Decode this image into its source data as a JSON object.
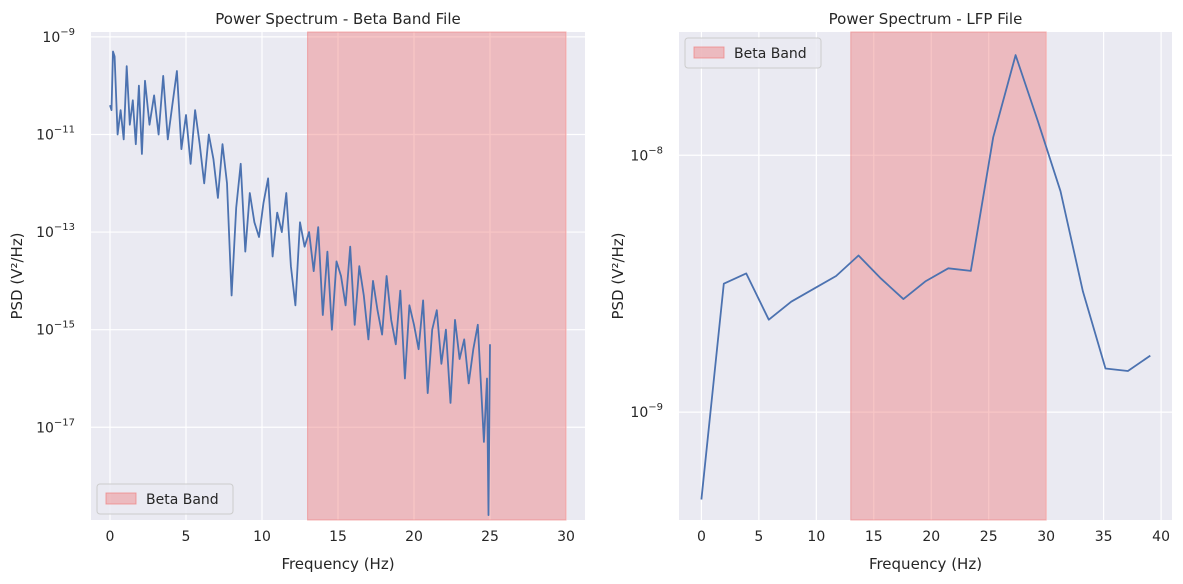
{
  "chart_data": [
    {
      "type": "line",
      "title": "Power Spectrum - Beta Band File",
      "xlabel": "Frequency (Hz)",
      "ylabel": "PSD (V²/Hz)",
      "xlim": [
        -1.25,
        31.25
      ],
      "ylim_log10": [
        -18.9,
        -8.9
      ],
      "yscale": "log",
      "xticks": [
        0,
        5,
        10,
        15,
        20,
        25,
        30
      ],
      "yticks_exp": [
        -17,
        -15,
        -13,
        -11,
        -9
      ],
      "grid": true,
      "legend_placement": "lower-left",
      "band": {
        "label": "Beta Band",
        "x0": 13,
        "x1": 30,
        "color": "#f08080"
      },
      "series_color": "#4c72b0",
      "x": [
        0.0,
        0.1,
        0.2,
        0.3,
        0.5,
        0.7,
        0.9,
        1.1,
        1.3,
        1.5,
        1.7,
        1.9,
        2.1,
        2.3,
        2.6,
        2.9,
        3.2,
        3.5,
        3.8,
        4.1,
        4.4,
        4.7,
        5.0,
        5.3,
        5.6,
        5.9,
        6.2,
        6.5,
        6.8,
        7.1,
        7.4,
        7.7,
        8.0,
        8.3,
        8.6,
        8.9,
        9.2,
        9.5,
        9.8,
        10.1,
        10.4,
        10.7,
        11.0,
        11.3,
        11.6,
        11.9,
        12.2,
        12.5,
        12.8,
        13.1,
        13.4,
        13.7,
        14.0,
        14.3,
        14.6,
        14.9,
        15.2,
        15.5,
        15.8,
        16.1,
        16.4,
        16.7,
        17.0,
        17.3,
        17.6,
        17.9,
        18.2,
        18.5,
        18.8,
        19.1,
        19.4,
        19.7,
        20.0,
        20.3,
        20.6,
        20.9,
        21.2,
        21.5,
        21.8,
        22.1,
        22.4,
        22.7,
        23.0,
        23.3,
        23.6,
        23.9,
        24.2,
        24.5,
        24.6,
        24.8,
        24.9,
        25.0
      ],
      "y_log10": [
        -10.4,
        -10.5,
        -9.3,
        -9.4,
        -11.0,
        -10.5,
        -11.1,
        -9.6,
        -10.8,
        -10.3,
        -11.2,
        -10.0,
        -11.4,
        -9.9,
        -10.8,
        -10.2,
        -11.0,
        -9.8,
        -11.1,
        -10.4,
        -9.7,
        -11.3,
        -10.6,
        -11.6,
        -10.5,
        -11.2,
        -12.0,
        -11.0,
        -11.5,
        -12.3,
        -11.2,
        -12.0,
        -14.3,
        -12.5,
        -11.6,
        -13.4,
        -12.2,
        -12.8,
        -13.1,
        -12.4,
        -11.9,
        -13.5,
        -12.6,
        -13.0,
        -12.2,
        -13.7,
        -14.5,
        -12.8,
        -13.3,
        -13.0,
        -13.8,
        -12.9,
        -14.7,
        -13.4,
        -15.0,
        -13.6,
        -13.9,
        -14.5,
        -13.3,
        -14.9,
        -13.7,
        -14.3,
        -15.2,
        -14.0,
        -14.6,
        -15.1,
        -13.9,
        -14.8,
        -15.3,
        -14.2,
        -16.0,
        -14.5,
        -14.9,
        -15.4,
        -14.4,
        -16.3,
        -15.0,
        -14.6,
        -15.7,
        -15.0,
        -16.5,
        -14.8,
        -15.6,
        -15.2,
        -16.1,
        -15.4,
        -14.9,
        -16.7,
        -17.3,
        -16.0,
        -18.8,
        -15.3
      ]
    },
    {
      "type": "line",
      "title": "Power Spectrum - LFP File",
      "xlabel": "Frequency (Hz)",
      "ylabel": "PSD (V²/Hz)",
      "xlim": [
        -1.95,
        40.95
      ],
      "ylim_log10": [
        -9.42,
        -7.52
      ],
      "yscale": "log",
      "xticks": [
        0,
        5,
        10,
        15,
        20,
        25,
        30,
        35,
        40
      ],
      "yticks_exp": [
        -9,
        -8
      ],
      "grid": true,
      "legend_placement": "upper-left",
      "band": {
        "label": "Beta Band",
        "x0": 13,
        "x1": 30,
        "color": "#f08080"
      },
      "series_color": "#4c72b0",
      "x": [
        0.0,
        1.95,
        3.9,
        5.86,
        7.81,
        9.77,
        11.72,
        13.67,
        15.63,
        17.58,
        19.53,
        21.48,
        23.44,
        25.39,
        27.34,
        29.3,
        31.25,
        33.2,
        35.16,
        37.11,
        39.06
      ],
      "y_log10": [
        -9.34,
        -8.5,
        -8.46,
        -8.64,
        -8.57,
        -8.52,
        -8.47,
        -8.39,
        -8.48,
        -8.56,
        -8.49,
        -8.44,
        -8.45,
        -7.93,
        -7.61,
        -7.87,
        -8.14,
        -8.53,
        -8.83,
        -8.84,
        -8.78
      ]
    }
  ]
}
